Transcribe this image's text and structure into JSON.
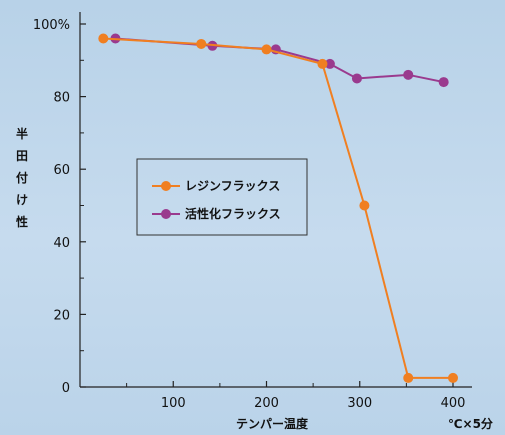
{
  "chart_data": {
    "type": "line",
    "xlabel": "テンパー温度",
    "xunit": "℃×5分",
    "ylabel": "半田付け性",
    "xlim": [
      0,
      400
    ],
    "ylim": [
      0,
      100
    ],
    "x_ticks": [
      "100",
      "200",
      "300",
      "400"
    ],
    "y_ticks": [
      "0",
      "20",
      "40",
      "60",
      "80",
      "100%"
    ],
    "legend_position": "center-left",
    "series": [
      {
        "name": "レジンフラックス",
        "color": "#f07f21",
        "x": [
          25,
          130,
          200,
          260,
          305,
          352,
          400
        ],
        "y": [
          96,
          94.5,
          93,
          89,
          50,
          2.5,
          2.5
        ]
      },
      {
        "name": "活性化フラックス",
        "color": "#9a3a8e",
        "x": [
          38,
          142,
          210,
          268,
          297,
          352,
          390
        ],
        "y": [
          96,
          94,
          93,
          89,
          85,
          86,
          84
        ]
      }
    ]
  }
}
